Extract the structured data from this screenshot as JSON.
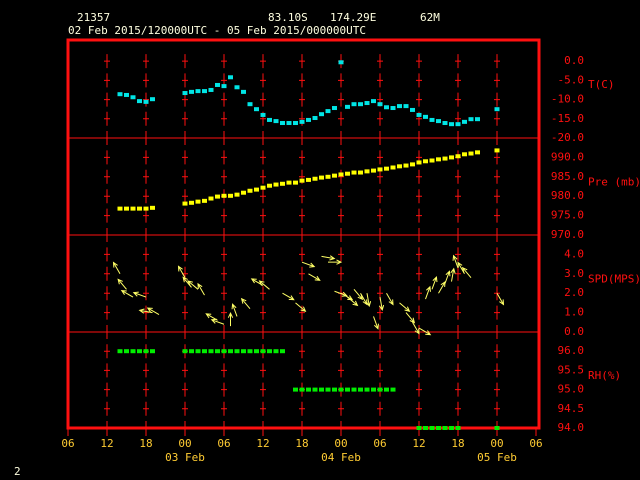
{
  "chart_data": {
    "type": "meteogram",
    "header": {
      "station": "21357",
      "latitude": "83.10S",
      "longitude": "174.29E",
      "elevation": "62M",
      "period": "02 Feb 2015/120000UTC - 05 Feb 2015/000000UTC"
    },
    "page_number": "2",
    "xlim": [
      0,
      72
    ],
    "xticks": [
      {
        "value": 0,
        "label": "06"
      },
      {
        "value": 6,
        "label": "12"
      },
      {
        "value": 12,
        "label": "18"
      },
      {
        "value": 18,
        "label": "00"
      },
      {
        "value": 24,
        "label": "06"
      },
      {
        "value": 30,
        "label": "12"
      },
      {
        "value": 36,
        "label": "18"
      },
      {
        "value": 42,
        "label": "00"
      },
      {
        "value": 48,
        "label": "06"
      },
      {
        "value": 54,
        "label": "12"
      },
      {
        "value": 60,
        "label": "18"
      },
      {
        "value": 66,
        "label": "00"
      },
      {
        "value": 72,
        "label": "06"
      }
    ],
    "date_labels": [
      {
        "value": 18,
        "label": "03 Feb"
      },
      {
        "value": 42,
        "label": "04 Feb"
      },
      {
        "value": 66,
        "label": "05 Feb"
      }
    ],
    "grid": "cross",
    "panels": [
      {
        "type": "scatter",
        "ylabel": "T(C)",
        "color": "#00e5e5",
        "ylim": [
          -20,
          5.5
        ],
        "yticks": [
          {
            "value": 0,
            "label": "0.0"
          },
          {
            "value": -5,
            "label": "-5.0"
          },
          {
            "value": -10,
            "label": "-10.0"
          },
          {
            "value": -15,
            "label": "-15.0"
          },
          {
            "value": -20,
            "label": "-20.0"
          }
        ],
        "x": [
          8,
          9,
          10,
          11,
          12,
          13,
          18,
          19,
          20,
          21,
          22,
          23,
          24,
          25,
          26,
          27,
          28,
          29,
          30,
          31,
          32,
          33,
          34,
          35,
          36,
          37,
          38,
          39,
          40,
          41,
          42,
          43,
          44,
          45,
          46,
          47,
          48,
          49,
          50,
          51,
          52,
          53,
          54,
          55,
          56,
          57,
          58,
          59,
          60,
          61,
          62,
          63,
          66
        ],
        "values": [
          -8.6,
          -8.8,
          -9.4,
          -10.4,
          -10.6,
          -9.9,
          -8.3,
          -8,
          -7.8,
          -7.8,
          -7.5,
          -6.2,
          -6.5,
          -4.2,
          -6.8,
          -8,
          -11.2,
          -12.5,
          -14,
          -15.3,
          -15.6,
          -16.1,
          -16.1,
          -16.1,
          -15.8,
          -15.3,
          -14.8,
          -13.8,
          -13,
          -12.2,
          -0.3,
          -11.9,
          -11.2,
          -11.2,
          -10.9,
          -10.4,
          -11.2,
          -12,
          -12.2,
          -11.7,
          -11.7,
          -12.7,
          -14,
          -14.5,
          -15.3,
          -15.6,
          -16.1,
          -16.4,
          -16.4,
          -15.8,
          -15.1,
          -15.1,
          -12.5
        ]
      },
      {
        "type": "scatter",
        "ylabel": "Pre (mb)",
        "color": "#ffff00",
        "ylim": [
          970,
          995
        ],
        "yticks": [
          {
            "value": 990,
            "label": "990.0"
          },
          {
            "value": 985,
            "label": "985.0"
          },
          {
            "value": 980,
            "label": "980.0"
          },
          {
            "value": 975,
            "label": "975.0"
          },
          {
            "value": 970,
            "label": "970.0"
          }
        ],
        "x": [
          8,
          9,
          10,
          11,
          12,
          13,
          18,
          19,
          20,
          21,
          22,
          23,
          24,
          25,
          26,
          27,
          28,
          29,
          30,
          31,
          32,
          33,
          34,
          35,
          36,
          37,
          38,
          39,
          40,
          41,
          42,
          43,
          44,
          45,
          46,
          47,
          48,
          49,
          50,
          51,
          52,
          53,
          54,
          55,
          56,
          57,
          58,
          59,
          60,
          61,
          62,
          63,
          66
        ],
        "values": [
          976.8,
          976.8,
          976.8,
          976.8,
          976.8,
          977,
          978.1,
          978.3,
          978.6,
          978.8,
          979.4,
          979.9,
          980.1,
          980.1,
          980.4,
          980.9,
          981.4,
          981.7,
          982.2,
          982.7,
          983,
          983.2,
          983.5,
          983.5,
          984,
          984.2,
          984.5,
          984.8,
          985,
          985.3,
          985.6,
          985.8,
          986.1,
          986.1,
          986.4,
          986.6,
          986.9,
          987.1,
          987.4,
          987.7,
          987.9,
          988.2,
          988.7,
          989,
          989.2,
          989.5,
          989.7,
          990,
          990.3,
          990.8,
          991,
          991.3,
          991.8
        ]
      },
      {
        "type": "vector",
        "ylabel": "SPD(MPS)",
        "color": "#ffff66",
        "ylim": [
          0,
          5
        ],
        "yticks": [
          {
            "value": 4,
            "label": "4.0"
          },
          {
            "value": 3,
            "label": "3.0"
          },
          {
            "value": 2,
            "label": "2.0"
          },
          {
            "value": 1,
            "label": "1.0"
          },
          {
            "value": 0,
            "label": "0.0"
          }
        ],
        "x": [
          8,
          9,
          10,
          12,
          13,
          14,
          18,
          19,
          20,
          21,
          23,
          24,
          25,
          26,
          28,
          30,
          31,
          33,
          35,
          36,
          37,
          39,
          40,
          41,
          42,
          43,
          44,
          45,
          46,
          47,
          48,
          49,
          51,
          52,
          53,
          54,
          55,
          56,
          57,
          58,
          59,
          60,
          61,
          62,
          66
        ],
        "values": [
          3.0,
          2.2,
          1.8,
          1.8,
          1.0,
          0.9,
          2.8,
          2.3,
          2.2,
          1.9,
          0.6,
          0.4,
          0.3,
          0.8,
          1.2,
          2.4,
          2.2,
          2.0,
          1.5,
          3.6,
          3.0,
          3.9,
          3.6,
          2.1,
          2.0,
          1.8,
          2.2,
          2.0,
          2.0,
          0.8,
          1.8,
          2.0,
          1.5,
          1.0,
          0.5,
          0.2,
          1.7,
          2.2,
          2.0,
          2.5,
          2.6,
          3.3,
          3.0,
          2.8,
          2.0
        ],
        "directions": [
          330,
          320,
          300,
          290,
          280,
          300,
          330,
          320,
          310,
          330,
          300,
          290,
          0,
          340,
          320,
          300,
          310,
          120,
          130,
          110,
          120,
          100,
          90,
          110,
          120,
          130,
          140,
          150,
          170,
          160,
          170,
          150,
          130,
          140,
          150,
          120,
          20,
          20,
          30,
          20,
          10,
          340,
          330,
          320,
          150
        ]
      },
      {
        "type": "scatter",
        "ylabel": "RH(%)",
        "color": "#00ee00",
        "ylim": [
          94,
          96.5
        ],
        "yticks": [
          {
            "value": 96,
            "label": "96.0"
          },
          {
            "value": 95.5,
            "label": "95.5"
          },
          {
            "value": 95,
            "label": "95.0"
          },
          {
            "value": 94.5,
            "label": "94.5"
          },
          {
            "value": 94,
            "label": "94.0"
          }
        ],
        "x": [
          8,
          9,
          10,
          11,
          12,
          13,
          18,
          19,
          20,
          21,
          22,
          23,
          24,
          25,
          26,
          27,
          28,
          29,
          30,
          31,
          32,
          33,
          35,
          36,
          37,
          38,
          39,
          40,
          41,
          42,
          43,
          44,
          45,
          46,
          47,
          48,
          49,
          50,
          54,
          55,
          56,
          57,
          58,
          59,
          60,
          66
        ],
        "values": [
          96,
          96,
          96,
          96,
          96,
          96,
          96,
          96,
          96,
          96,
          96,
          96,
          96,
          96,
          96,
          96,
          96,
          96,
          96,
          96,
          96,
          96,
          95,
          95,
          95,
          95,
          95,
          95,
          95,
          95,
          95,
          95,
          95,
          95,
          95,
          95,
          95,
          95,
          94,
          94,
          94,
          94,
          94,
          94,
          94,
          94
        ]
      }
    ]
  }
}
